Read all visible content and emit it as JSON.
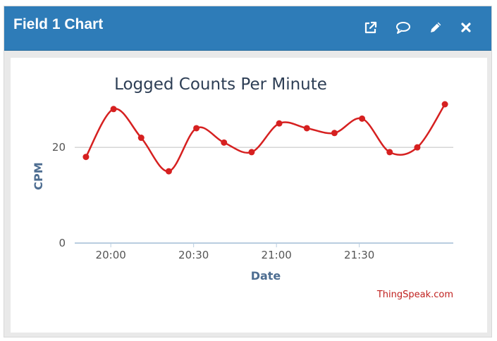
{
  "window": {
    "title": "Field 1 Chart",
    "actions": [
      {
        "name": "open-external",
        "icon": "external-link-icon"
      },
      {
        "name": "comment",
        "icon": "comment-icon"
      },
      {
        "name": "edit",
        "icon": "pencil-icon"
      },
      {
        "name": "close",
        "icon": "close-icon"
      }
    ]
  },
  "credit": "ThingSpeak.com",
  "colors": {
    "header": "#2e7cb8",
    "line": "#d62020",
    "axis_title": "#4d6d91",
    "grid": "#c0c0c0",
    "credit": "#c0201e"
  },
  "chart_data": {
    "type": "line",
    "title": "Logged Counts Per Minute",
    "xlabel": "Date",
    "ylabel": "CPM",
    "x_ticks": [
      "20:00",
      "20:30",
      "21:00",
      "21:30"
    ],
    "y_ticks": [
      0,
      20
    ],
    "ylim": [
      0,
      29
    ],
    "grid": true,
    "legend": false,
    "series": [
      {
        "x": [
          "19:51",
          "20:01",
          "20:11",
          "20:21",
          "20:31",
          "20:41",
          "20:51",
          "21:01",
          "21:11",
          "21:21",
          "21:31",
          "21:41",
          "21:51",
          "22:01"
        ],
        "y": [
          18,
          28,
          22,
          15,
          24,
          21,
          19,
          25,
          24,
          23,
          26,
          19,
          20,
          29
        ]
      }
    ]
  }
}
